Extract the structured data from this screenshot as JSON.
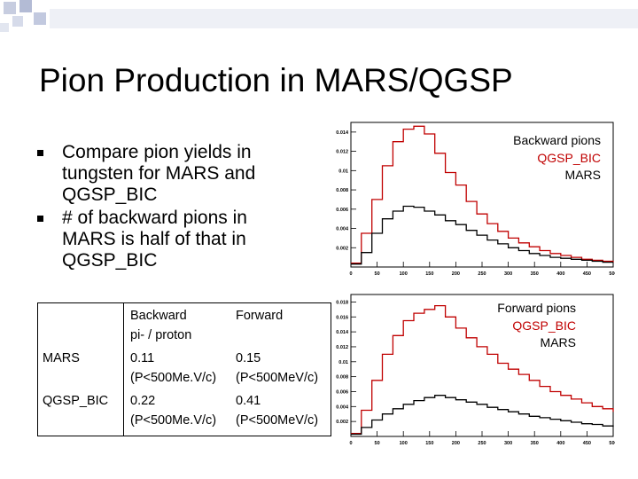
{
  "slide": {
    "title": "Pion Production in MARS/QGSP",
    "bullets": [
      "Compare pion yields in tungsten for MARS and QGSP_BIC",
      "# of backward pions in MARS is half of that in QGSP_BIC"
    ]
  },
  "table": {
    "header": {
      "blank": "",
      "backward": "Backward",
      "backward_sub": "pi- / proton",
      "forward": "Forward"
    },
    "rows": [
      {
        "name": "MARS",
        "backward": "0.11",
        "backward_cond": "(P<500Me.V/c)",
        "forward": "0.15",
        "forward_cond": "(P<500MeV/c)"
      },
      {
        "name": "QGSP_BIC",
        "backward": "0.22",
        "backward_cond": "(P<500Me.V/c)",
        "forward": "0.41",
        "forward_cond": "(P<500MeV/c)"
      }
    ]
  },
  "colors": {
    "qgsp": "#c00000",
    "mars": "#000000"
  },
  "chart_data": [
    {
      "type": "line",
      "title": "Backward pions",
      "legend": [
        "QGSP_BIC",
        "MARS"
      ],
      "xlim": [
        0,
        500
      ],
      "ylim": [
        0,
        0.015
      ],
      "xticks": [
        0,
        50,
        100,
        150,
        200,
        250,
        300,
        350,
        400,
        450,
        500
      ],
      "yticks": [
        0.002,
        0.004,
        0.006,
        0.008,
        0.01,
        0.012,
        0.014
      ],
      "ytick_labels": [
        "0.002",
        "0.004",
        "0.006",
        "0.008",
        "0.01",
        "0.012",
        "0.014"
      ],
      "x": [
        0,
        20,
        40,
        60,
        80,
        100,
        120,
        140,
        160,
        180,
        200,
        220,
        240,
        260,
        280,
        300,
        320,
        340,
        360,
        380,
        400,
        420,
        440,
        460,
        480,
        500
      ],
      "series": [
        {
          "name": "QGSP_BIC",
          "values": [
            0.0004,
            0.0035,
            0.007,
            0.0105,
            0.013,
            0.0143,
            0.0146,
            0.0138,
            0.0118,
            0.0098,
            0.0085,
            0.0068,
            0.0055,
            0.0045,
            0.0037,
            0.003,
            0.0025,
            0.0021,
            0.0017,
            0.0014,
            0.0012,
            0.001,
            0.0008,
            0.0007,
            0.0006,
            0.0005
          ]
        },
        {
          "name": "MARS",
          "values": [
            0.0003,
            0.0015,
            0.0035,
            0.005,
            0.0058,
            0.0063,
            0.0062,
            0.0058,
            0.0054,
            0.0048,
            0.0044,
            0.0038,
            0.0033,
            0.0028,
            0.0024,
            0.002,
            0.0017,
            0.0014,
            0.0012,
            0.001,
            0.0009,
            0.0008,
            0.0007,
            0.0006,
            0.0005,
            0.0005
          ]
        }
      ]
    },
    {
      "type": "line",
      "title": "Forward pions",
      "legend": [
        "QGSP_BIC",
        "MARS"
      ],
      "xlim": [
        0,
        500
      ],
      "ylim": [
        0,
        0.019
      ],
      "xticks": [
        0,
        50,
        100,
        150,
        200,
        250,
        300,
        350,
        400,
        450,
        500
      ],
      "yticks": [
        0.002,
        0.004,
        0.006,
        0.008,
        0.01,
        0.012,
        0.014,
        0.016,
        0.018
      ],
      "ytick_labels": [
        "0.002",
        "0.004",
        "0.006",
        "0.008",
        "0.01",
        "0.012",
        "0.014",
        "0.016",
        "0.018"
      ],
      "x": [
        0,
        20,
        40,
        60,
        80,
        100,
        120,
        140,
        160,
        180,
        200,
        220,
        240,
        260,
        280,
        300,
        320,
        340,
        360,
        380,
        400,
        420,
        440,
        460,
        480,
        500
      ],
      "series": [
        {
          "name": "QGSP_BIC",
          "values": [
            0.0004,
            0.0035,
            0.0075,
            0.011,
            0.0135,
            0.0155,
            0.0165,
            0.017,
            0.0175,
            0.016,
            0.0145,
            0.0132,
            0.012,
            0.011,
            0.0098,
            0.009,
            0.0083,
            0.0075,
            0.0067,
            0.006,
            0.0055,
            0.005,
            0.0045,
            0.004,
            0.0037,
            0.0033
          ]
        },
        {
          "name": "MARS",
          "values": [
            0.0003,
            0.0012,
            0.0022,
            0.003,
            0.0037,
            0.0043,
            0.0048,
            0.0052,
            0.0055,
            0.0052,
            0.0049,
            0.0046,
            0.0043,
            0.0039,
            0.0036,
            0.0033,
            0.003,
            0.0027,
            0.0025,
            0.0023,
            0.0021,
            0.0019,
            0.0017,
            0.0016,
            0.0014,
            0.0013
          ]
        }
      ]
    }
  ]
}
